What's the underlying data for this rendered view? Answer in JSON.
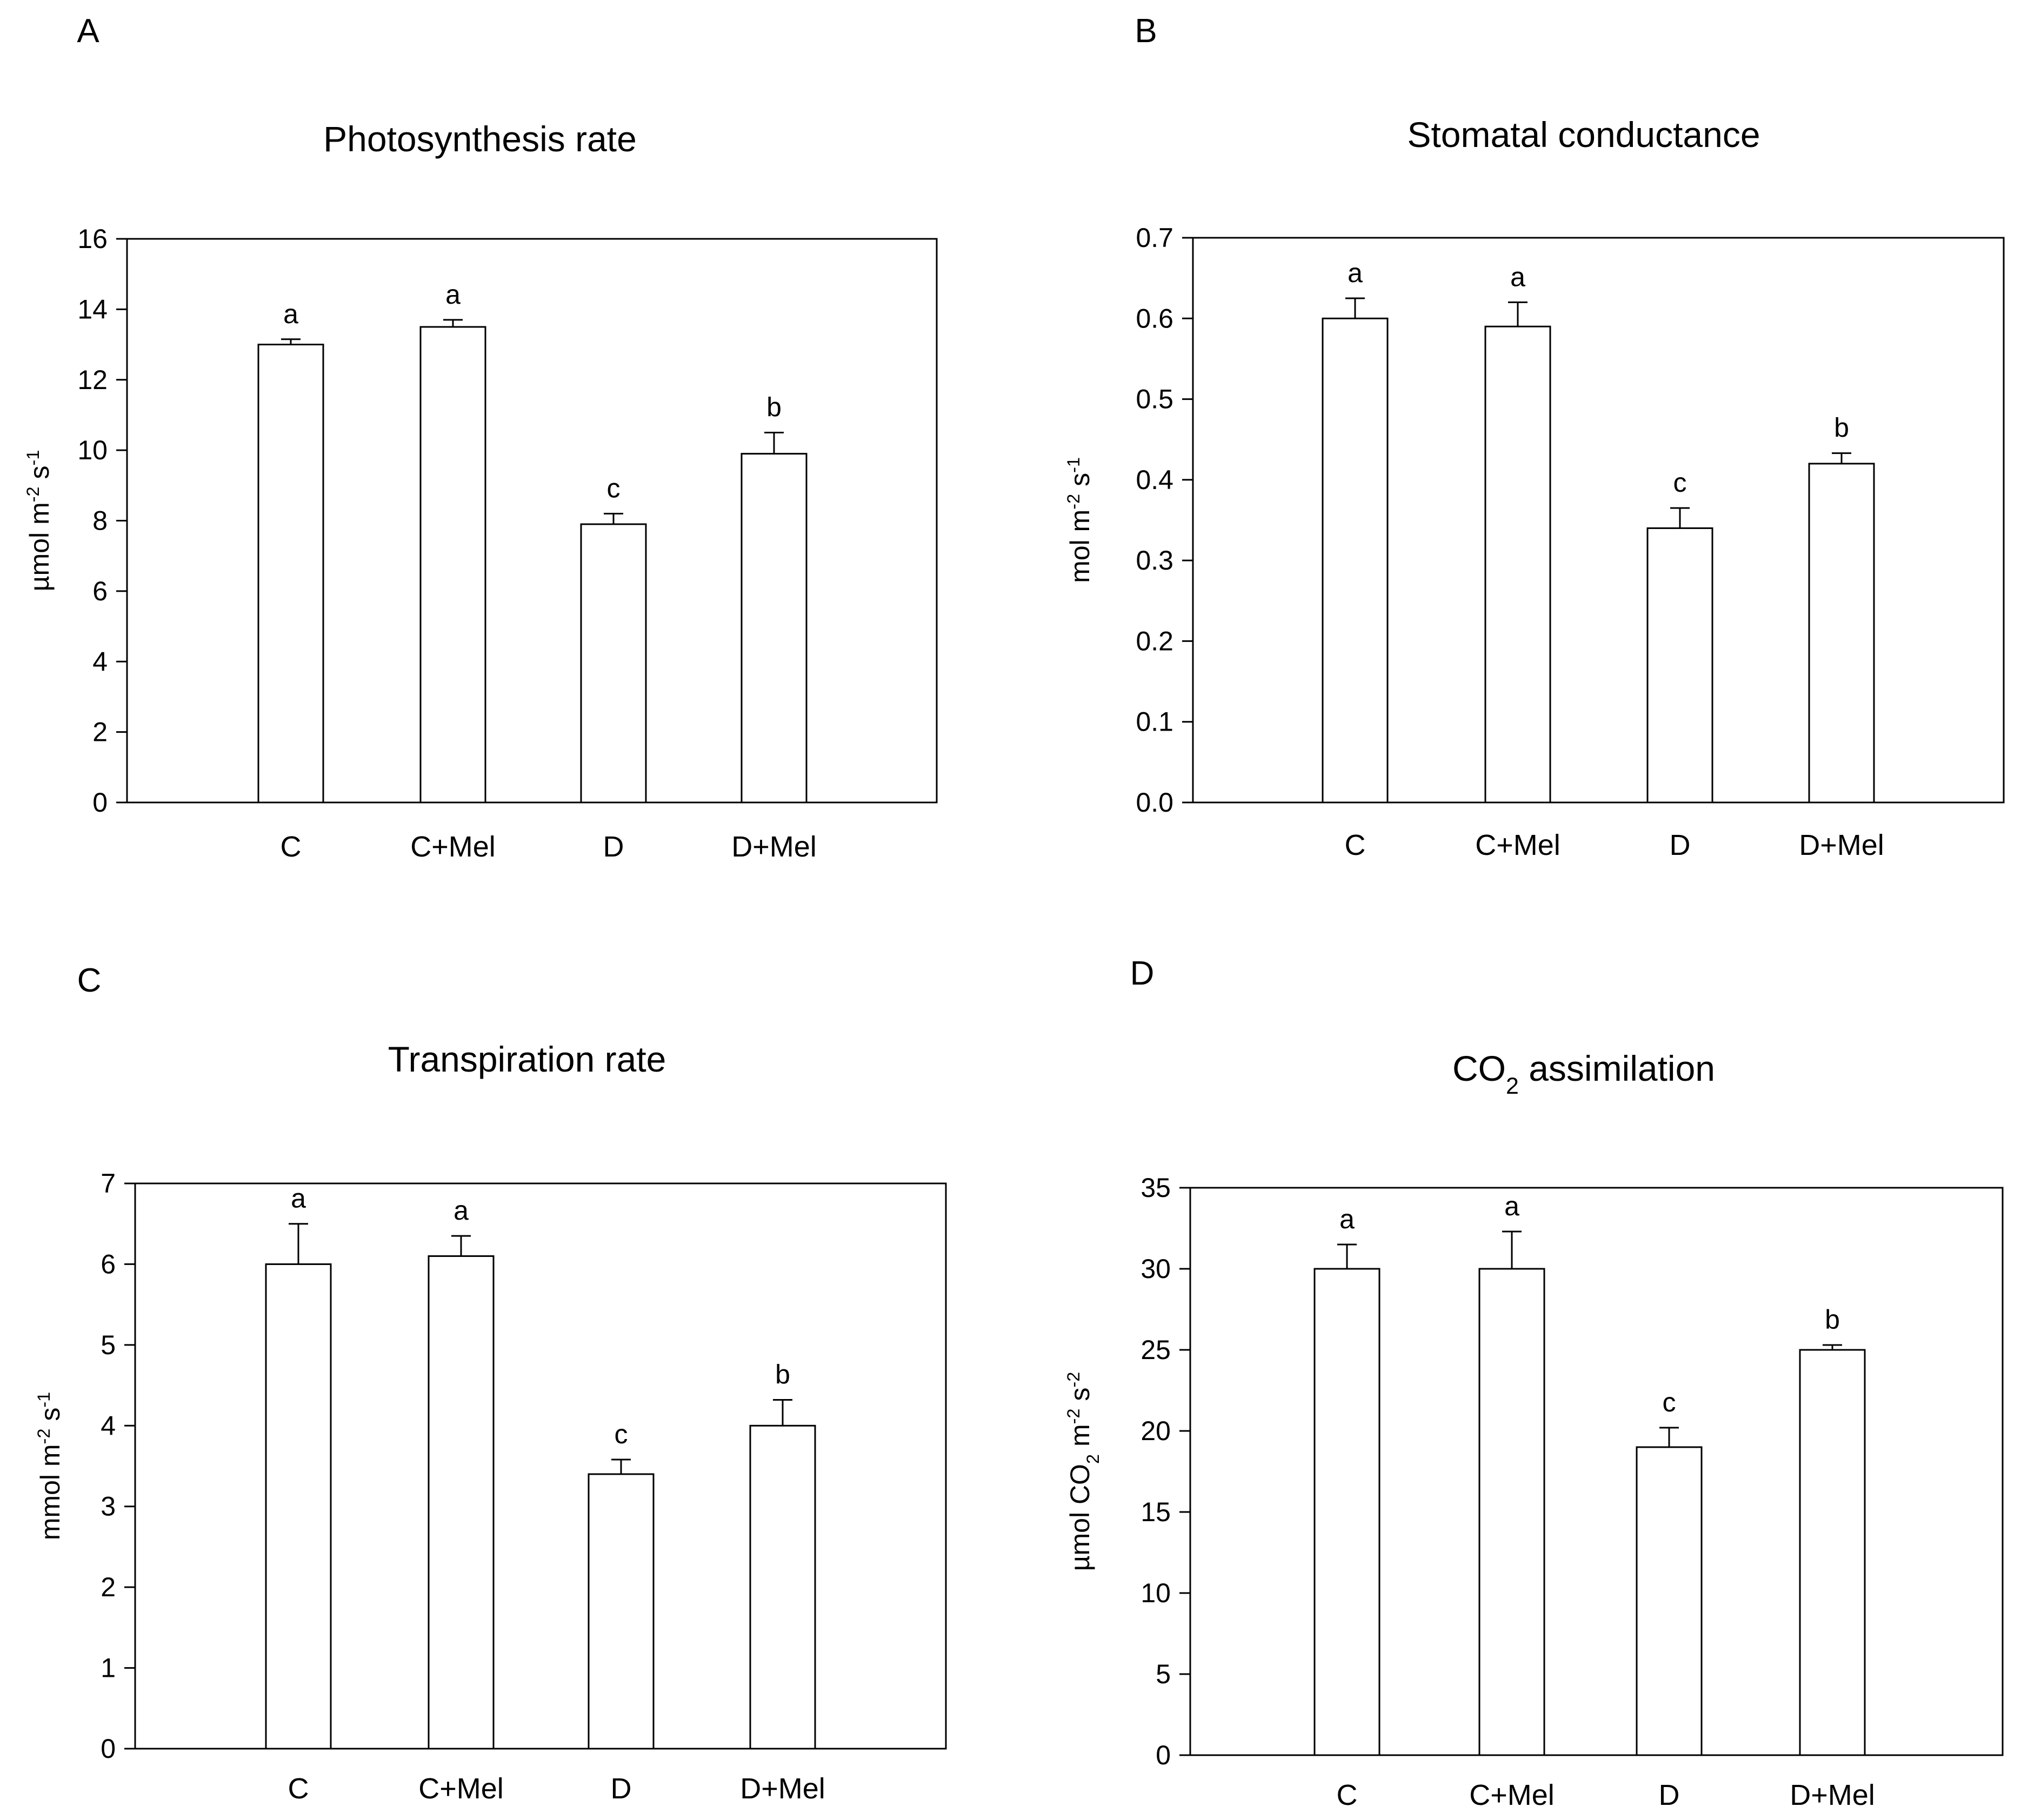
{
  "chart_data": [
    {
      "panel": "A",
      "type": "bar",
      "title": "Photosynthesis rate",
      "title_parts": [
        {
          "t": "Photosynthesis rate"
        }
      ],
      "ylabel": "µmol m-2 s-1",
      "ylabel_parts": [
        {
          "t": "µmol m"
        },
        {
          "t": "-2",
          "sup": true
        },
        {
          "t": " s"
        },
        {
          "t": "-1",
          "sup": true
        }
      ],
      "xlabel": "",
      "categories": [
        "C",
        "C+Mel",
        "D",
        "D+Mel"
      ],
      "values": [
        13.0,
        13.5,
        7.9,
        9.9
      ],
      "errors": [
        0.15,
        0.2,
        0.3,
        0.6
      ],
      "significance": [
        "a",
        "a",
        "c",
        "b"
      ],
      "ylim": [
        0,
        16
      ],
      "yticks": [
        0,
        2,
        4,
        6,
        8,
        10,
        12,
        14,
        16
      ],
      "tick_decimals": 0
    },
    {
      "panel": "B",
      "type": "bar",
      "title": "Stomatal conductance",
      "title_parts": [
        {
          "t": "Stomatal conductance"
        }
      ],
      "ylabel": "mol m-2 s-1",
      "ylabel_parts": [
        {
          "t": "mol m"
        },
        {
          "t": "-2",
          "sup": true
        },
        {
          "t": " s"
        },
        {
          "t": "-1",
          "sup": true
        }
      ],
      "xlabel": "",
      "categories": [
        "C",
        "C+Mel",
        "D",
        "D+Mel"
      ],
      "values": [
        0.6,
        0.59,
        0.34,
        0.42
      ],
      "errors": [
        0.025,
        0.03,
        0.025,
        0.013
      ],
      "significance": [
        "a",
        "a",
        "c",
        "b"
      ],
      "ylim": [
        0,
        0.7
      ],
      "yticks": [
        0,
        0.1,
        0.2,
        0.3,
        0.4,
        0.5,
        0.6,
        0.7
      ],
      "tick_decimals": 1
    },
    {
      "panel": "C",
      "type": "bar",
      "title": "Transpiration rate",
      "title_parts": [
        {
          "t": "Transpiration rate"
        }
      ],
      "ylabel": "mmol m-2 s-1",
      "ylabel_parts": [
        {
          "t": "mmol m"
        },
        {
          "t": "-2",
          "sup": true
        },
        {
          "t": " s"
        },
        {
          "t": "-1",
          "sup": true
        }
      ],
      "xlabel": "",
      "categories": [
        "C",
        "C+Mel",
        "D",
        "D+Mel"
      ],
      "values": [
        6.0,
        6.1,
        3.4,
        4.0
      ],
      "errors": [
        0.5,
        0.25,
        0.18,
        0.32
      ],
      "significance": [
        "a",
        "a",
        "c",
        "b"
      ],
      "ylim": [
        0,
        7
      ],
      "yticks": [
        0,
        1,
        2,
        3,
        4,
        5,
        6,
        7
      ],
      "tick_decimals": 0
    },
    {
      "panel": "D",
      "type": "bar",
      "title": "CO2 assimilation",
      "title_parts": [
        {
          "t": "CO"
        },
        {
          "t": "2",
          "sub": true
        },
        {
          "t": " assimilation"
        }
      ],
      "ylabel": "µmol CO2 m-2 s-2",
      "ylabel_parts": [
        {
          "t": "µmol CO"
        },
        {
          "t": "2",
          "sub": true
        },
        {
          "t": " m"
        },
        {
          "t": "-2",
          "sup": true
        },
        {
          "t": " s"
        },
        {
          "t": "-2",
          "sup": true
        }
      ],
      "xlabel": "",
      "categories": [
        "C",
        "C+Mel",
        "D",
        "D+Mel"
      ],
      "values": [
        30,
        30,
        19,
        25
      ],
      "errors": [
        1.5,
        2.3,
        1.2,
        0.3
      ],
      "significance": [
        "a",
        "a",
        "c",
        "b"
      ],
      "ylim": [
        0,
        35
      ],
      "yticks": [
        0,
        5,
        10,
        15,
        20,
        25,
        30,
        35
      ],
      "tick_decimals": 0
    }
  ]
}
